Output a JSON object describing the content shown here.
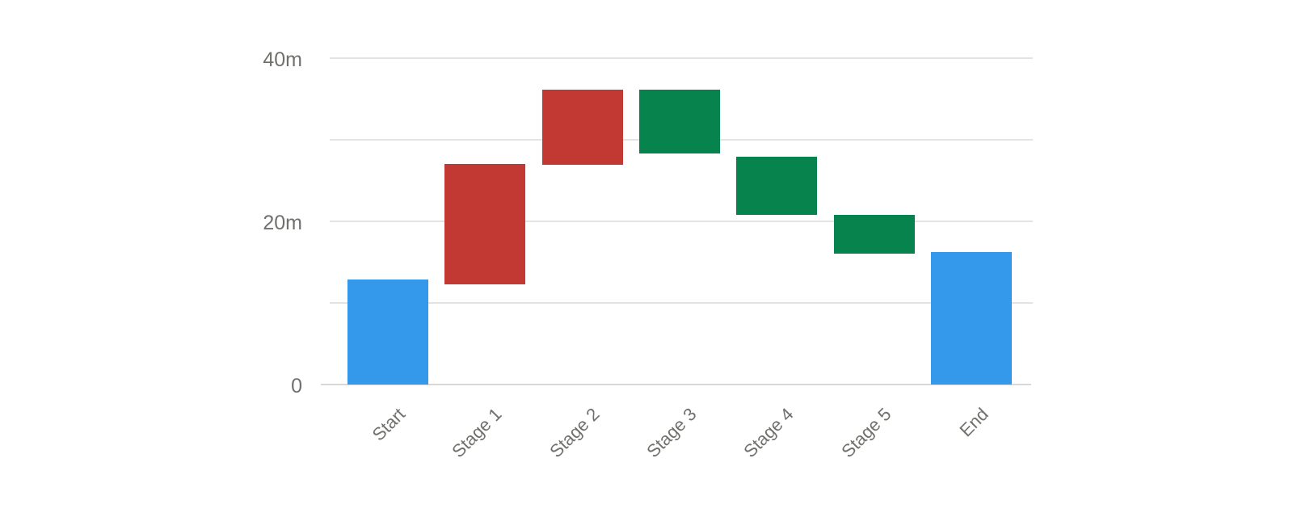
{
  "chart_data": {
    "type": "waterfall",
    "title": "",
    "legend": "none",
    "grid": "horizontal",
    "categories": [
      "Start",
      "Stage 1",
      "Stage 2",
      "Stage 3",
      "Stage 4",
      "Stage 5",
      "End"
    ],
    "y_axis": {
      "range": [
        0,
        40
      ],
      "ticks": [
        {
          "value": 0,
          "label": "0"
        },
        {
          "value": 10,
          "label": ""
        },
        {
          "value": 20,
          "label": "20m"
        },
        {
          "value": 30,
          "label": ""
        },
        {
          "value": 40,
          "label": "40m"
        }
      ]
    },
    "bars": [
      {
        "label": "Start",
        "role": "total",
        "low": 0,
        "high": 12.9
      },
      {
        "label": "Stage 1",
        "role": "increase",
        "low": 12.3,
        "high": 27.0
      },
      {
        "label": "Stage 2",
        "role": "increase",
        "low": 26.9,
        "high": 36.1
      },
      {
        "label": "Stage 3",
        "role": "decrease",
        "low": 28.3,
        "high": 36.1
      },
      {
        "label": "Stage 4",
        "role": "decrease",
        "low": 20.8,
        "high": 27.9
      },
      {
        "label": "Stage 5",
        "role": "decrease",
        "low": 16.0,
        "high": 20.8
      },
      {
        "label": "End",
        "role": "total",
        "low": 0,
        "high": 16.2
      }
    ],
    "colors": {
      "total": "#3498EB",
      "increase": "#C23934",
      "decrease": "#07844D",
      "gridline": "#E3E3E3",
      "zero_line": "#D8D8D8",
      "axis_text": "#71706C"
    }
  }
}
